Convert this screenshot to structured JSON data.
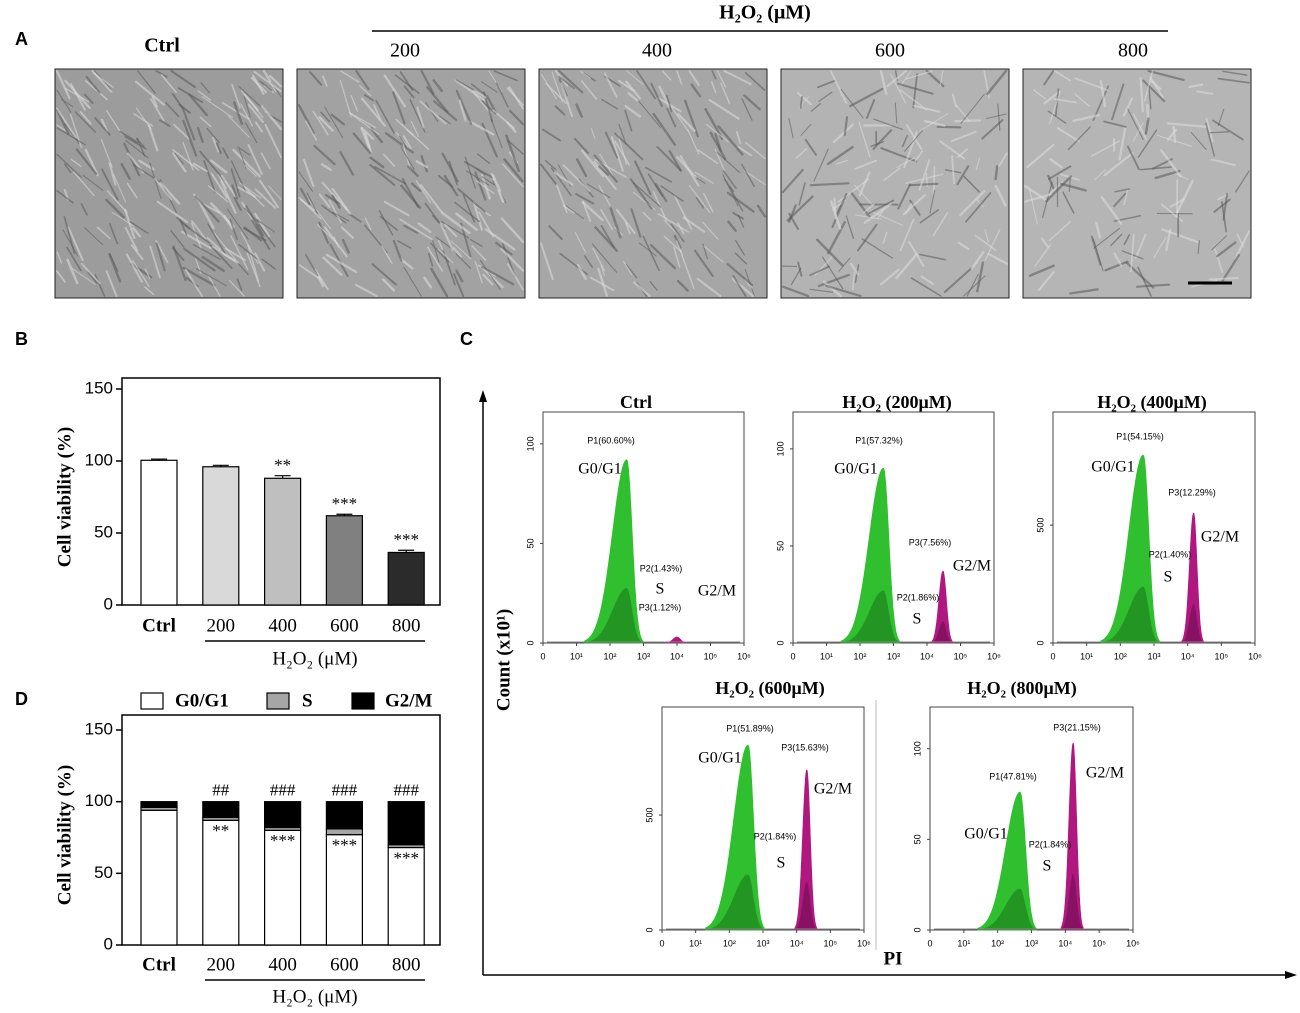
{
  "panel_a": {
    "label": "A",
    "ctrl_label": "Ctrl",
    "group_label": "H₂O₂ (μM)",
    "concentrations": [
      "200",
      "400",
      "600",
      "800"
    ]
  },
  "chart_data": [
    {
      "panel": "B",
      "type": "bar",
      "ylabel": "Cell viability (%)",
      "group_label": "H₂O₂ (μM)",
      "categories": [
        "Ctrl",
        "200",
        "400",
        "600",
        "800"
      ],
      "values": [
        100.5,
        96,
        88,
        62,
        36.5
      ],
      "errors": [
        0.8,
        1,
        1.8,
        1,
        1.5
      ],
      "colors": [
        "#ffffff",
        "#d9d9d9",
        "#bfbfbf",
        "#808080",
        "#2b2b2b"
      ],
      "annotations": [
        null,
        null,
        "**",
        "***",
        "***"
      ],
      "ylim": [
        0,
        150
      ],
      "yticks": [
        0,
        50,
        100,
        150
      ]
    },
    {
      "panel": "D",
      "type": "stacked_bar",
      "ylabel": "Cell viability (%)",
      "group_label": "H₂O₂ (μM)",
      "categories": [
        "Ctrl",
        "200",
        "400",
        "600",
        "800"
      ],
      "series": [
        {
          "name": "G0/G1",
          "color": "#ffffff",
          "values": [
            94,
            87,
            80,
            77,
            68
          ]
        },
        {
          "name": "S",
          "color": "#a6a6a6",
          "values": [
            2,
            2,
            2,
            4,
            2
          ]
        },
        {
          "name": "G2/M",
          "color": "#000000",
          "values": [
            4,
            11,
            18,
            19,
            30
          ]
        }
      ],
      "annotations_top": [
        null,
        "##",
        "###",
        "###",
        "###"
      ],
      "annotations_bottom": [
        null,
        "**",
        "***",
        "***",
        "***"
      ],
      "ylim": [
        0,
        150
      ],
      "yticks": [
        0,
        50,
        100,
        150
      ]
    }
  ],
  "panel_c": {
    "label": "C",
    "ylabel": "Count (x10¹)",
    "xlabel": "PI",
    "log_x": true,
    "xlim": [
      1,
      1000000
    ],
    "xticks": [
      {
        "value": 1,
        "label": "0"
      },
      {
        "value": 10,
        "label": "10¹"
      },
      {
        "value": 100,
        "label": "10²"
      },
      {
        "value": 1000,
        "label": "10³"
      },
      {
        "value": 10000,
        "label": "10⁴"
      },
      {
        "value": 100000,
        "label": "10⁵"
      },
      {
        "value": 1000000,
        "label": "10⁶"
      }
    ],
    "plots": [
      {
        "title": "Ctrl",
        "ylim": [
          0,
          116
        ],
        "yticks": [
          0,
          50,
          100
        ],
        "gates": [
          "P1(60.60%)",
          "P2(1.43%)",
          "P3(1.12%)"
        ],
        "phases": [
          "G0/G1",
          "S",
          "G2/M"
        ],
        "peaks": {
          "g1": {
            "x": 316,
            "height": 92
          },
          "g2": {
            "x": 10000,
            "height": 3
          }
        }
      },
      {
        "title": "H₂O₂ (200μM)",
        "ylim": [
          0,
          119
        ],
        "yticks": [
          0,
          50,
          100
        ],
        "gates": [
          "P1(57.32%)",
          "P2(1.86%)",
          "P3(7.56%)"
        ],
        "phases": [
          "G0/G1",
          "S",
          "G2/M"
        ],
        "peaks": {
          "g1": {
            "x": 500,
            "height": 90
          },
          "g2": {
            "x": 30000,
            "height": 37
          }
        }
      },
      {
        "title": "H₂O₂ (400μM)",
        "ylim": [
          0,
          980
        ],
        "yticks": [
          0,
          500
        ],
        "gates": [
          "P1(54.15%)",
          "P2(1.40%)",
          "P3(12.29%)"
        ],
        "phases": [
          "G0/G1",
          "S",
          "G2/M"
        ],
        "peaks": {
          "g1": {
            "x": 480,
            "height": 797
          },
          "g2": {
            "x": 15000,
            "height": 551
          }
        }
      },
      {
        "title": "H₂O₂ (600μM)",
        "ylim": [
          0,
          970
        ],
        "yticks": [
          0,
          500
        ],
        "gates": [
          "P1(51.89%)",
          "P2(1.84%)",
          "P3(15.63%)"
        ],
        "phases": [
          "G0/G1",
          "S",
          "G2/M"
        ],
        "peaks": {
          "g1": {
            "x": 360,
            "height": 804
          },
          "g2": {
            "x": 20000,
            "height": 696
          }
        }
      },
      {
        "title": "H₂O₂ (800μM)",
        "ylim": [
          0,
          123
        ],
        "yticks": [
          0,
          50,
          100
        ],
        "gates": [
          "P1(47.81%)",
          "P2(1.84%)",
          "P3(21.15%)"
        ],
        "phases": [
          "G0/G1",
          "S",
          "G2/M"
        ],
        "peaks": {
          "g1": {
            "x": 460,
            "height": 76
          },
          "g2": {
            "x": 17000,
            "height": 103
          }
        }
      }
    ]
  }
}
